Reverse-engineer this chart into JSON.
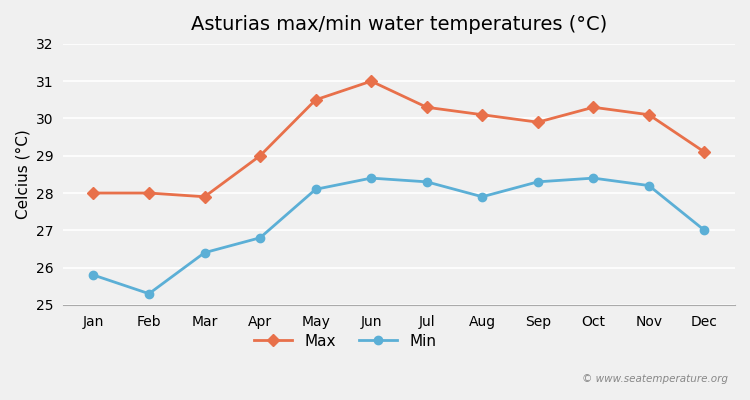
{
  "title": "Asturias max/min water temperatures (°C)",
  "ylabel": "Celcius (°C)",
  "months": [
    "Jan",
    "Feb",
    "Mar",
    "Apr",
    "May",
    "Jun",
    "Jul",
    "Aug",
    "Sep",
    "Oct",
    "Nov",
    "Dec"
  ],
  "max_values": [
    28.0,
    28.0,
    27.9,
    29.0,
    30.5,
    31.0,
    30.3,
    30.1,
    29.9,
    30.3,
    30.1,
    29.1
  ],
  "min_values": [
    25.8,
    25.3,
    26.4,
    26.8,
    28.1,
    28.4,
    28.3,
    27.9,
    28.3,
    28.4,
    28.2,
    27.0
  ],
  "max_color": "#e8704a",
  "min_color": "#5bafd6",
  "ylim": [
    25.0,
    32.0
  ],
  "yticks": [
    25,
    26,
    27,
    28,
    29,
    30,
    31,
    32
  ],
  "background_color": "#f0f0f0",
  "plot_bg_color": "#f0f0f0",
  "grid_color": "#ffffff",
  "legend_labels": [
    "Max",
    "Min"
  ],
  "watermark": "© www.seatemperature.org",
  "title_fontsize": 14,
  "axis_label_fontsize": 11,
  "tick_fontsize": 10,
  "legend_fontsize": 11
}
